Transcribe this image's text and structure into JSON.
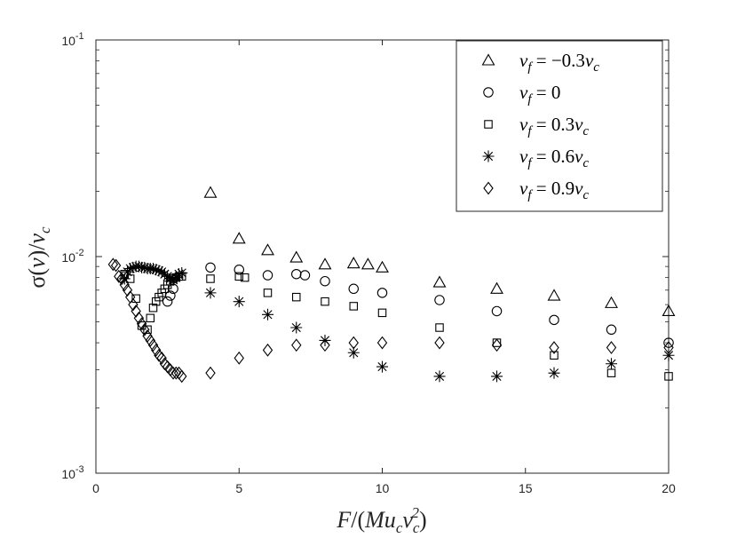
{
  "chart_data": {
    "type": "scatter",
    "title": "",
    "xlabel": "F/(Mu_c v_c^2)",
    "ylabel": "σ(v)/v_c",
    "xlim": [
      0,
      20
    ],
    "ylim": [
      0.001,
      0.1
    ],
    "yscale": "log",
    "x_ticks": [
      0,
      5,
      10,
      15,
      20
    ],
    "y_ticks": [
      {
        "value": 0.001,
        "base": "10",
        "exp": "-3"
      },
      {
        "value": 0.01,
        "base": "10",
        "exp": "-2"
      },
      {
        "value": 0.1,
        "base": "10",
        "exp": "-1"
      }
    ],
    "grid": false,
    "legend_position": "top-right",
    "series": [
      {
        "name": "v_f = −0.3v_c",
        "legend_main": "v",
        "legend_sub": "f",
        "legend_rest": " = −0.3",
        "legend_tail": "v",
        "legend_tail_sub": "c",
        "marker": "triangle",
        "x": [
          4,
          5,
          6,
          7,
          8,
          9,
          9.5,
          10,
          12,
          14,
          16,
          18,
          20
        ],
        "y": [
          0.0197,
          0.0121,
          0.0107,
          0.0099,
          0.0092,
          0.0093,
          0.0092,
          0.0089,
          0.0076,
          0.0071,
          0.0066,
          0.0061,
          0.0056
        ]
      },
      {
        "name": "v_f = 0",
        "legend_main": "v",
        "legend_sub": "f",
        "legend_rest": " = 0",
        "legend_tail": "",
        "legend_tail_sub": "",
        "marker": "circle",
        "x": [
          2.5,
          2.6,
          2.7,
          4,
          5,
          6,
          7,
          7.3,
          8,
          9,
          10,
          12,
          14,
          16,
          18,
          20
        ],
        "y": [
          0.0062,
          0.0066,
          0.0071,
          0.0089,
          0.0087,
          0.0082,
          0.0083,
          0.0082,
          0.0077,
          0.0071,
          0.0068,
          0.0063,
          0.0056,
          0.0051,
          0.0046,
          0.004
        ]
      },
      {
        "name": "v_f = 0.3v_c",
        "legend_main": "v",
        "legend_sub": "f",
        "legend_rest": " = 0.3",
        "legend_tail": "v",
        "legend_tail_sub": "c",
        "marker": "square",
        "x": [
          1.0,
          1.2,
          1.4,
          1.6,
          1.8,
          1.9,
          2.0,
          2.1,
          2.2,
          2.3,
          2.4,
          2.5,
          2.6,
          2.7,
          2.8,
          2.9,
          3.0,
          4,
          5,
          5.2,
          6,
          7,
          8,
          9,
          10,
          12,
          14,
          16,
          18,
          20
        ],
        "y": [
          0.0083,
          0.0079,
          0.0064,
          0.0048,
          0.0046,
          0.0052,
          0.0058,
          0.0062,
          0.0065,
          0.0068,
          0.0071,
          0.0074,
          0.0077,
          0.0079,
          0.008,
          0.0081,
          0.0081,
          0.0079,
          0.0081,
          0.008,
          0.0068,
          0.0065,
          0.0062,
          0.0059,
          0.0055,
          0.0047,
          0.004,
          0.0035,
          0.0029,
          0.0028
        ]
      },
      {
        "name": "v_f = 0.6v_c",
        "legend_main": "v",
        "legend_sub": "f",
        "legend_rest": " = 0.6",
        "legend_tail": "v",
        "legend_tail_sub": "c",
        "marker": "star",
        "x": [
          1.0,
          1.1,
          1.2,
          1.3,
          1.4,
          1.5,
          1.6,
          1.7,
          1.8,
          1.9,
          2.0,
          2.1,
          2.2,
          2.3,
          2.4,
          2.5,
          2.6,
          2.7,
          2.8,
          2.9,
          3.0,
          4,
          5,
          6,
          7,
          8,
          9,
          10,
          12,
          14,
          16,
          18,
          20
        ],
        "y": [
          0.0079,
          0.0085,
          0.0088,
          0.0089,
          0.009,
          0.009,
          0.0089,
          0.0089,
          0.0088,
          0.0088,
          0.0088,
          0.0087,
          0.0086,
          0.0085,
          0.0083,
          0.0081,
          0.0079,
          0.0078,
          0.008,
          0.0083,
          0.0084,
          0.0068,
          0.0062,
          0.0054,
          0.0047,
          0.0041,
          0.0036,
          0.0031,
          0.0028,
          0.0028,
          0.0029,
          0.0032,
          0.0035
        ]
      },
      {
        "name": "v_f = 0.9v_c",
        "legend_main": "v",
        "legend_sub": "f",
        "legend_rest": " = 0.9",
        "legend_tail": "v",
        "legend_tail_sub": "c",
        "marker": "diamond",
        "x": [
          0.6,
          0.7,
          0.8,
          0.9,
          1.0,
          1.1,
          1.2,
          1.3,
          1.4,
          1.5,
          1.6,
          1.7,
          1.8,
          1.9,
          2.0,
          2.1,
          2.2,
          2.3,
          2.4,
          2.5,
          2.6,
          2.7,
          2.8,
          2.9,
          3.0,
          4,
          5,
          6,
          7,
          8,
          9,
          10,
          12,
          14,
          16,
          18,
          20
        ],
        "y": [
          0.0092,
          0.0091,
          0.0081,
          0.0079,
          0.0074,
          0.007,
          0.0065,
          0.006,
          0.0056,
          0.0052,
          0.0049,
          0.0046,
          0.0043,
          0.0041,
          0.0039,
          0.0037,
          0.0035,
          0.0034,
          0.0032,
          0.0031,
          0.003,
          0.0029,
          0.0029,
          0.0029,
          0.0028,
          0.0029,
          0.0034,
          0.0037,
          0.0039,
          0.0039,
          0.004,
          0.004,
          0.004,
          0.0039,
          0.0038,
          0.0038,
          0.0038
        ]
      }
    ]
  },
  "axis_labels": {
    "x_parts": [
      "F",
      "/(",
      "Mu",
      "c",
      "v",
      "c",
      "2",
      ")"
    ],
    "y_parts": [
      "σ(",
      "v",
      ")/",
      "v",
      "c"
    ]
  }
}
